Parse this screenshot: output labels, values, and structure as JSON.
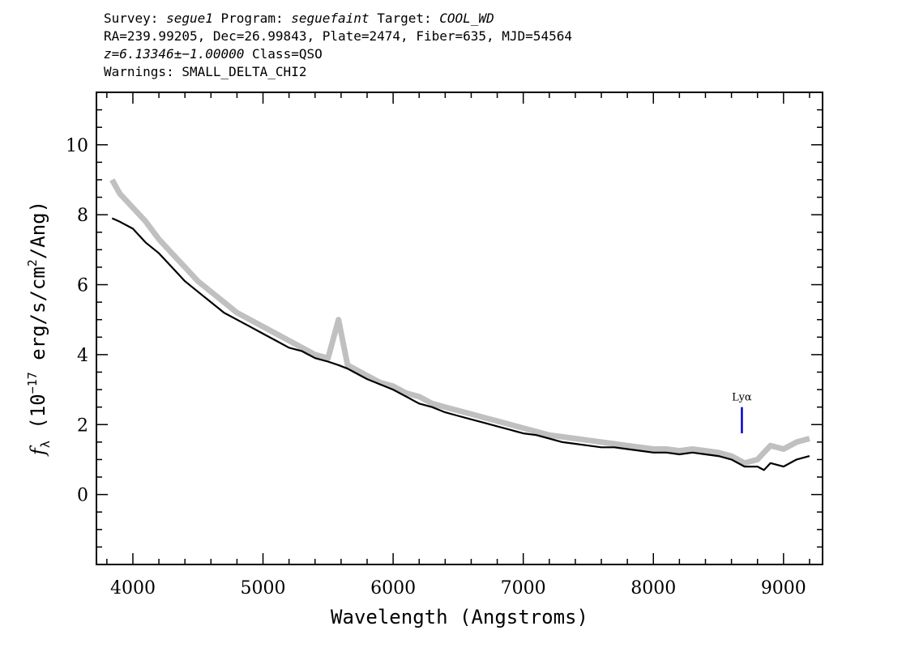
{
  "header": {
    "survey_label": "Survey:",
    "survey": "segue1",
    "program_label": "Program:",
    "program": "seguefaint",
    "target_label": "Target:",
    "target": "COOL_WD",
    "line2": "RA=239.99205, Dec=26.99843, Plate=2474, Fiber=635, MJD=54564",
    "redshift": "z=6.13346±−1.00000",
    "class_text": "Class=QSO",
    "warnings": "Warnings: SMALL_DELTA_CHI2"
  },
  "chart_data": {
    "type": "line",
    "xlabel": "Wavelength (Angstroms)",
    "ylabel_prefix": "f",
    "ylabel_sub": "λ",
    "ylabel_units_a": " (10",
    "ylabel_exp": "−17",
    "ylabel_units_b": " erg/s/cm",
    "ylabel_exp2": "2",
    "ylabel_units_c": "/Ang)",
    "xlim": [
      3720,
      9300
    ],
    "ylim": [
      -2,
      11.5
    ],
    "xticks": [
      4000,
      5000,
      6000,
      7000,
      8000,
      9000
    ],
    "yticks": [
      0,
      2,
      4,
      6,
      8,
      10
    ],
    "grid": false,
    "series": [
      {
        "role": "flux_error_band",
        "color": "#c0c0c0",
        "x": [
          3840,
          3900,
          4000,
          4100,
          4200,
          4300,
          4400,
          4500,
          4600,
          4700,
          4800,
          4900,
          5000,
          5100,
          5200,
          5300,
          5400,
          5500,
          5580,
          5650,
          5700,
          5800,
          5900,
          6000,
          6100,
          6200,
          6300,
          6400,
          6500,
          6600,
          6700,
          6800,
          6900,
          7000,
          7100,
          7200,
          7300,
          7400,
          7500,
          7600,
          7700,
          7800,
          7900,
          8000,
          8100,
          8200,
          8300,
          8400,
          8500,
          8600,
          8700,
          8800,
          8850,
          8900,
          9000,
          9100,
          9200
        ],
        "values": [
          9.0,
          8.6,
          8.2,
          7.8,
          7.3,
          6.9,
          6.5,
          6.1,
          5.8,
          5.5,
          5.2,
          5.0,
          4.8,
          4.6,
          4.4,
          4.2,
          4.0,
          3.9,
          5.0,
          3.7,
          3.6,
          3.4,
          3.2,
          3.1,
          2.9,
          2.8,
          2.6,
          2.5,
          2.4,
          2.3,
          2.2,
          2.1,
          2.0,
          1.9,
          1.8,
          1.7,
          1.65,
          1.6,
          1.55,
          1.5,
          1.45,
          1.4,
          1.35,
          1.3,
          1.3,
          1.25,
          1.3,
          1.25,
          1.2,
          1.1,
          0.9,
          1.0,
          1.2,
          1.4,
          1.3,
          1.5,
          1.6
        ]
      },
      {
        "role": "flux",
        "color": "#000000",
        "x": [
          3840,
          3900,
          4000,
          4100,
          4200,
          4300,
          4400,
          4500,
          4600,
          4700,
          4800,
          4900,
          5000,
          5100,
          5200,
          5300,
          5400,
          5500,
          5580,
          5650,
          5700,
          5800,
          5900,
          6000,
          6100,
          6200,
          6300,
          6400,
          6500,
          6600,
          6700,
          6800,
          6900,
          7000,
          7100,
          7200,
          7300,
          7400,
          7500,
          7600,
          7700,
          7800,
          7900,
          8000,
          8100,
          8200,
          8300,
          8400,
          8500,
          8600,
          8700,
          8800,
          8850,
          8900,
          9000,
          9100,
          9200
        ],
        "values": [
          7.9,
          7.8,
          7.6,
          7.2,
          6.9,
          6.5,
          6.1,
          5.8,
          5.5,
          5.2,
          5.0,
          4.8,
          4.6,
          4.4,
          4.2,
          4.1,
          3.9,
          3.8,
          3.7,
          3.6,
          3.5,
          3.3,
          3.15,
          3.0,
          2.8,
          2.6,
          2.5,
          2.35,
          2.25,
          2.15,
          2.05,
          1.95,
          1.85,
          1.75,
          1.7,
          1.6,
          1.5,
          1.45,
          1.4,
          1.35,
          1.35,
          1.3,
          1.25,
          1.2,
          1.2,
          1.15,
          1.2,
          1.15,
          1.1,
          1.0,
          0.8,
          0.8,
          0.7,
          0.9,
          0.8,
          1.0,
          1.1
        ]
      }
    ],
    "line_marker": {
      "label": "Lyα",
      "x": 8680,
      "y_from": 1.75,
      "y_to": 2.5,
      "color": "#0000cc"
    }
  }
}
